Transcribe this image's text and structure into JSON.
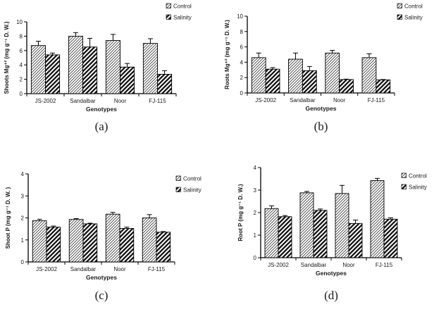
{
  "figure": {
    "background": "#ffffff",
    "colors": {
      "axis": "#000000",
      "text": "#1a1a1a",
      "bar_dark_fill": "#161616",
      "hatch_line": "#3a3a3a",
      "stripe_line": "#ffffff"
    }
  },
  "chart_data": [
    {
      "id": "a",
      "caption": "(a)",
      "type": "bar",
      "title": "",
      "ylabel": "Shoots Mg⁺² (mg g⁻¹ D. W.)",
      "xlabel": "Genotypes",
      "categories": [
        "JS-2002",
        "Sandalbar",
        "Noor",
        "FJ-115"
      ],
      "ylim": [
        0,
        10
      ],
      "yticks": [
        0,
        2,
        4,
        6,
        8,
        10
      ],
      "grid": false,
      "legend_position": "top-right",
      "series": [
        {
          "name": "Control",
          "style": "light-hatch",
          "values": [
            6.7,
            8.0,
            7.4,
            7.0
          ],
          "errors": [
            0.6,
            0.5,
            0.85,
            0.65
          ]
        },
        {
          "name": "Salinity",
          "style": "dark-stripe",
          "values": [
            5.4,
            6.5,
            3.7,
            2.7
          ],
          "errors": [
            0.25,
            1.2,
            0.5,
            0.5
          ]
        }
      ]
    },
    {
      "id": "b",
      "caption": "(b)",
      "type": "bar",
      "title": "",
      "ylabel": "Roots Mg⁺² (mg g⁻¹ D. W.)",
      "xlabel": "Genotypes",
      "categories": [
        "JS-2002",
        "Sandalbar",
        "Noor",
        "FJ-115"
      ],
      "ylim": [
        0,
        10
      ],
      "yticks": [
        0,
        2,
        4,
        6,
        8,
        10
      ],
      "grid": false,
      "legend_position": "top-right",
      "series": [
        {
          "name": "Control",
          "style": "light-hatch",
          "values": [
            4.6,
            4.4,
            5.2,
            4.6
          ],
          "errors": [
            0.6,
            0.8,
            0.35,
            0.5
          ]
        },
        {
          "name": "Salinity",
          "style": "dark-stripe",
          "values": [
            3.1,
            2.9,
            1.75,
            1.7
          ],
          "errors": [
            0.2,
            0.55,
            0.05,
            0.05
          ]
        }
      ]
    },
    {
      "id": "c",
      "caption": "(c)",
      "type": "bar",
      "title": "",
      "ylabel": "Shoot P (mg g⁻¹ D. W. )",
      "xlabel": "Genotypes",
      "categories": [
        "JS-2002",
        "Sandalbar",
        "Noor",
        "FJ-115"
      ],
      "ylim": [
        0,
        4
      ],
      "yticks": [
        0,
        1,
        2,
        3,
        4
      ],
      "grid": false,
      "legend_position": "top-right",
      "series": [
        {
          "name": "Control",
          "style": "light-hatch",
          "values": [
            1.87,
            1.93,
            2.17,
            2.0
          ],
          "errors": [
            0.07,
            0.04,
            0.08,
            0.15
          ]
        },
        {
          "name": "Salinity",
          "style": "dark-stripe",
          "values": [
            1.58,
            1.73,
            1.52,
            1.35
          ],
          "errors": [
            0.05,
            0.03,
            0.06,
            0.03
          ]
        }
      ]
    },
    {
      "id": "d",
      "caption": "(d)",
      "type": "bar",
      "title": "",
      "ylabel": "Root P (mg g⁻¹ D. W.)",
      "xlabel": "Genotypes",
      "categories": [
        "JS-2002",
        "Sandalbar",
        "Noor",
        "FJ-115"
      ],
      "ylim": [
        0,
        4
      ],
      "yticks": [
        0,
        1,
        2,
        3,
        4
      ],
      "grid": false,
      "legend_position": "top-right",
      "series": [
        {
          "name": "Control",
          "style": "light-hatch",
          "values": [
            2.18,
            2.88,
            2.85,
            3.42
          ],
          "errors": [
            0.12,
            0.06,
            0.36,
            0.1
          ]
        },
        {
          "name": "Salinity",
          "style": "dark-stripe",
          "values": [
            1.82,
            2.1,
            1.52,
            1.71
          ],
          "errors": [
            0.05,
            0.06,
            0.15,
            0.06
          ]
        }
      ]
    }
  ]
}
